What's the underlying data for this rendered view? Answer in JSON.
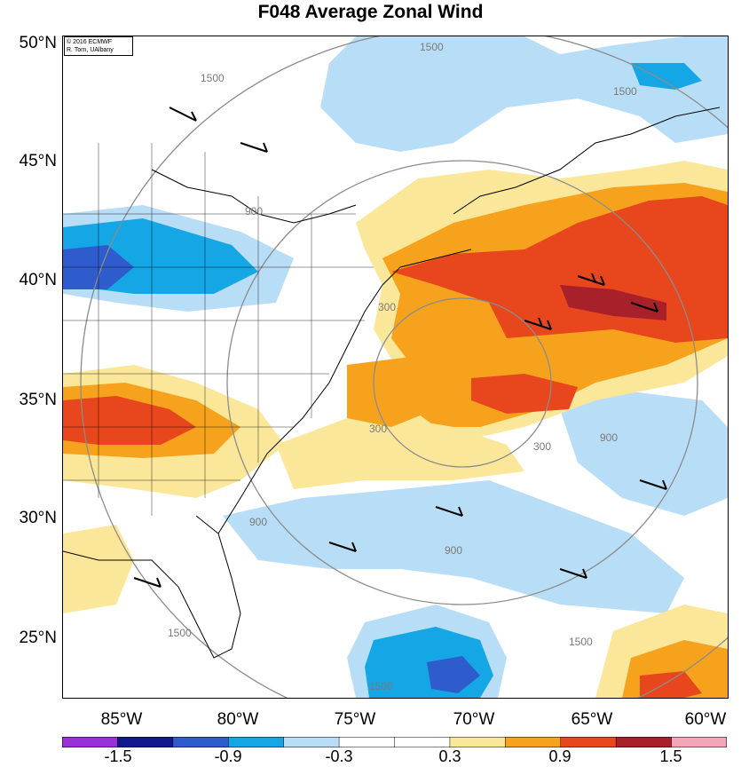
{
  "title": "F048 Average Zonal Wind",
  "credit": {
    "line1": "© 2016 ECMWF",
    "line2": "R. Torn, UAlbany"
  },
  "lat_labels": [
    "50°N",
    "45°N",
    "40°N",
    "35°N",
    "30°N",
    "25°N"
  ],
  "lon_labels": [
    "85°W",
    "80°W",
    "75°W",
    "70°W",
    "65°W",
    "60°W"
  ],
  "contour_labels": [
    "1500",
    "1500",
    "1500",
    "900",
    "300",
    "300",
    "300",
    "900",
    "900",
    "900",
    "1500",
    "1500",
    "1500"
  ],
  "colorbar": {
    "labels": [
      "-1.5",
      "-0.9",
      "-0.3",
      "0.3",
      "0.9",
      "1.5"
    ],
    "colors": [
      "#9b30d8",
      "#10188c",
      "#2f5ccc",
      "#15a6e6",
      "#b8ddf6",
      "#ffffff",
      "#ffffff",
      "#fbe79a",
      "#f6a21c",
      "#e8461c",
      "#a8202a",
      "#f4a6b8"
    ]
  },
  "palette": {
    "pos1": "#fbe79a",
    "pos2": "#f6a21c",
    "pos3": "#e8461c",
    "pos4": "#a8202a",
    "neg1": "#b8ddf6",
    "neg2": "#15a6e6",
    "neg3": "#2f5ccc",
    "neg4": "#10188c"
  }
}
